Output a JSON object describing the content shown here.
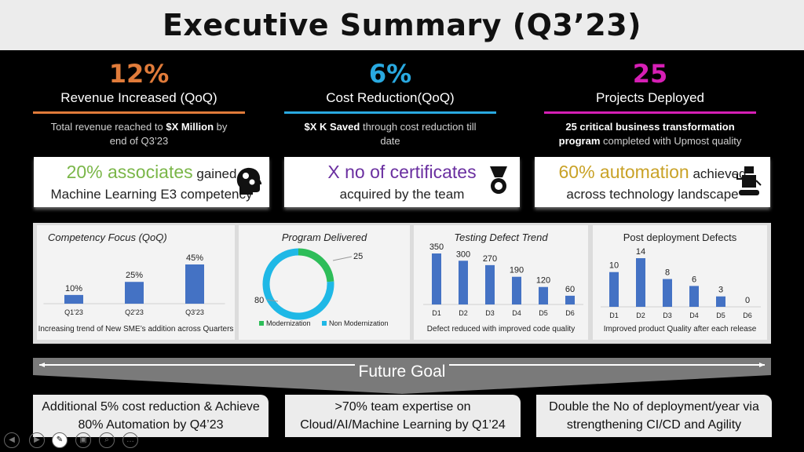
{
  "title": "Executive Summary (Q3’23)",
  "kpis": [
    {
      "value": "12%",
      "label": "Revenue Increased (QoQ)",
      "sub_pre": "Total revenue reached to ",
      "sub_bold": "$X Million",
      "sub_post": " by end of Q3’23",
      "color": "#e07b3a"
    },
    {
      "value": "6%",
      "label": "Cost Reduction(QoQ)",
      "sub_bold": "$X K Saved",
      "sub_post": " through cost reduction till date",
      "color": "#29a9e0"
    },
    {
      "value": "25",
      "label": "Projects Deployed",
      "sub_bold": "25 critical business transformation program",
      "sub_post": " completed with Upmost quality",
      "color": "#d61fb5"
    }
  ],
  "highlights": [
    {
      "accent": "20% associates",
      "mid": " gained",
      "line2": "Machine Learning E3 competency",
      "color": "#7ab648",
      "icon": "head-gears-icon"
    },
    {
      "accent": "X no of certificates",
      "mid": "",
      "line2": "acquired by the team",
      "color": "#6a2fa0",
      "icon": "medal-icon"
    },
    {
      "accent": "60% automation",
      "mid": " achieved",
      "line2": "across technology landscape",
      "color": "#c9a227",
      "icon": "robot-icon"
    }
  ],
  "chart_data": [
    {
      "type": "bar",
      "title": "Competency Focus (QoQ)",
      "categories": [
        "Q1'23",
        "Q2'23",
        "Q3'23"
      ],
      "values": [
        10,
        25,
        45
      ],
      "labels": [
        "10%",
        "25%",
        "45%"
      ],
      "footnote": "Increasing trend of New SME’s addition across Quarters",
      "color": "#4472c4"
    },
    {
      "type": "pie",
      "title": "Program Delivered",
      "categories": [
        "Modernization",
        "Non Modernization"
      ],
      "values": [
        25,
        80
      ],
      "colors": [
        "#2ebd59",
        "#1fb8e6"
      ]
    },
    {
      "type": "bar",
      "title": "Testing Defect Trend",
      "categories": [
        "D1",
        "D2",
        "D3",
        "D4",
        "D5",
        "D6"
      ],
      "values": [
        350,
        300,
        270,
        190,
        120,
        60
      ],
      "footnote": "Defect reduced  with improved code quality",
      "color": "#4472c4"
    },
    {
      "type": "bar",
      "title": "Post deployment Defects",
      "categories": [
        "D1",
        "D2",
        "D3",
        "D4",
        "D5",
        "D6"
      ],
      "values": [
        10,
        14,
        8,
        6,
        3,
        0
      ],
      "footnote": "Improved product Quality after each release",
      "color": "#4472c4"
    }
  ],
  "future": {
    "label": "Future Goal",
    "goals": [
      "Additional 5% cost reduction & Achieve 80% Automation by Q4’23",
      ">70% team expertise on Cloud/AI/Machine Learning by Q1’24",
      "Double the No of deployment/year via strengthening CI/CD and Agility"
    ]
  },
  "controls": [
    "◀",
    "▶",
    "✎",
    "▣",
    "⌕",
    "…"
  ]
}
